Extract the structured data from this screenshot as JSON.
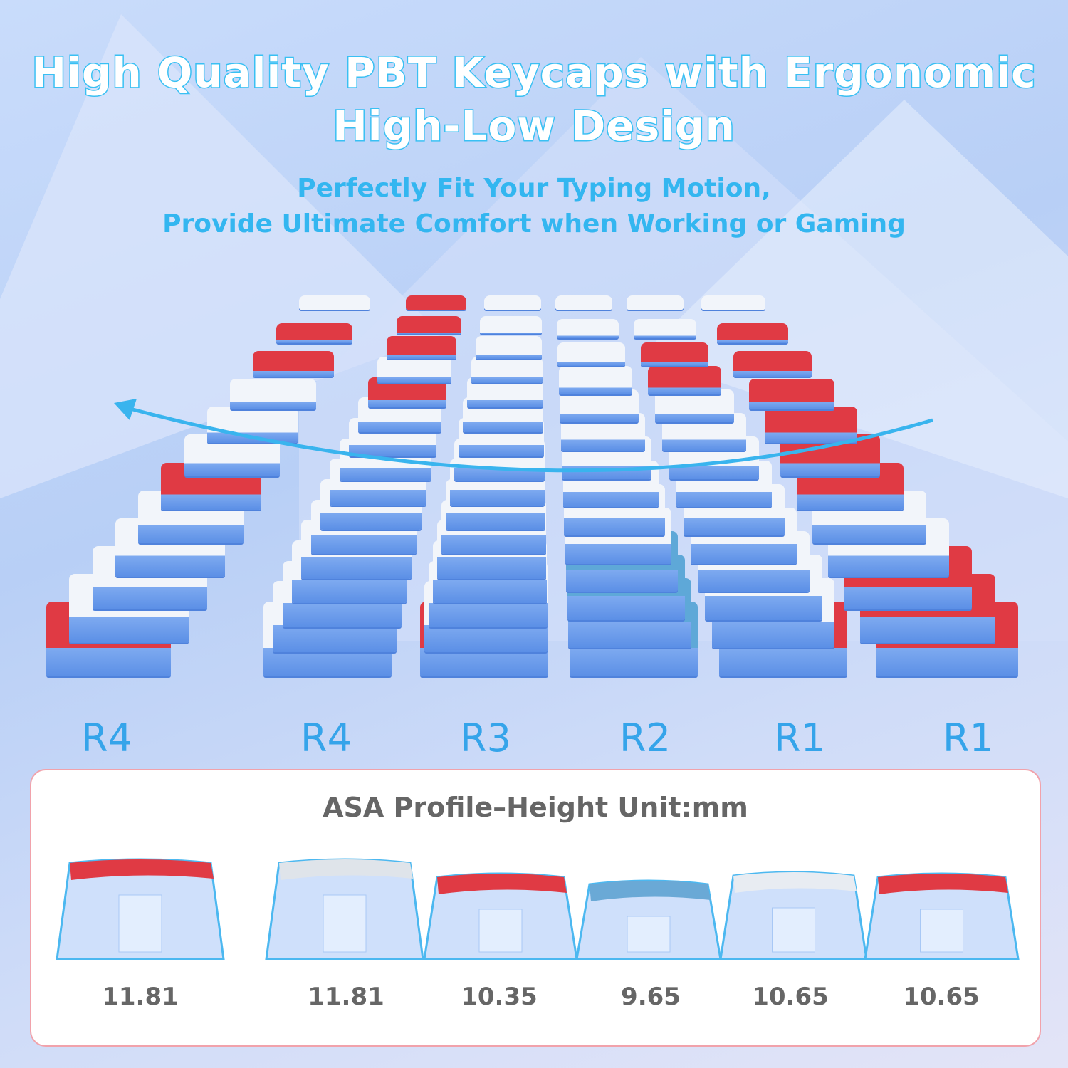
{
  "headline": {
    "line1": "High Quality PBT Keycaps with Ergonomic",
    "line2": "High-Low Design"
  },
  "subheadline": {
    "line1": "Perfectly Fit Your Typing Motion,",
    "line2": "Provide Ultimate Comfort when Working or Gaming"
  },
  "rows": [
    "R4",
    "R4",
    "R3",
    "R2",
    "R1",
    "R1"
  ],
  "profile": {
    "title": "ASA Profile–Height Unit:mm",
    "heights": [
      "11.81",
      "11.81",
      "10.35",
      "9.65",
      "10.65",
      "10.65"
    ]
  },
  "colors": {
    "accent": "#39c0f3",
    "red": "#e03a44",
    "cap_blue": "#8fb8f5",
    "border": "#f1a2ab"
  },
  "icons": [
    "snowflake-icon",
    "curved-arrow-icon"
  ]
}
